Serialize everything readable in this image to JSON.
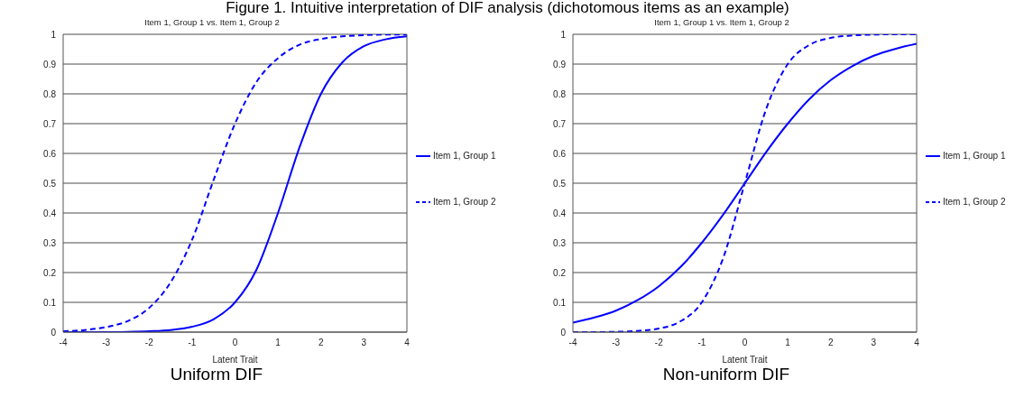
{
  "chart_data": [
    {
      "type": "line",
      "title": "Figure 1. Intuitive interpretation of DIF analysis (dichotomous items as an example)",
      "subtitle": "Item 1, Group 1 vs. Item 1, Group 2",
      "xlabel": "Latent Trait",
      "annotations": [
        "Uniform DIF"
      ],
      "x": [
        -4,
        -3.5,
        -3,
        -2.5,
        -2,
        -1.5,
        -1,
        -0.5,
        0,
        0.5,
        1,
        1.5,
        2,
        2.5,
        3,
        3.5,
        4
      ],
      "xlim": [
        -4,
        4
      ],
      "xticks": [
        -4,
        -3,
        -2,
        -1,
        0,
        1,
        2,
        3,
        4
      ],
      "ylim": [
        0,
        1
      ],
      "yticks": [
        0,
        0.1,
        0.2,
        0.3,
        0.4,
        0.5,
        0.6,
        0.7,
        0.8,
        0.9,
        1
      ],
      "grid": "y",
      "legend": "right",
      "marker": "none",
      "series": [
        {
          "name": "Item 1, Group 1",
          "color": "#0000ff",
          "line_style": "solid",
          "values": [
            0,
            0,
            0,
            0.001,
            0.003,
            0.007,
            0.018,
            0.043,
            0.1,
            0.21,
            0.4,
            0.62,
            0.8,
            0.906,
            0.96,
            0.983,
            0.993
          ]
        },
        {
          "name": "Item 1, Group 2",
          "color": "#0000ff",
          "line_style": "dashed",
          "values": [
            0.003,
            0.007,
            0.017,
            0.037,
            0.081,
            0.167,
            0.31,
            0.51,
            0.7,
            0.84,
            0.92,
            0.965,
            0.984,
            0.993,
            0.997,
            0.999,
            0.999
          ]
        }
      ]
    },
    {
      "type": "line",
      "subtitle": "Item 1, Group 1 vs. Item 1, Group 2",
      "xlabel": "Latent Trait",
      "annotations": [
        "Non-uniform DIF"
      ],
      "x": [
        -4,
        -3.5,
        -3,
        -2.5,
        -2,
        -1.5,
        -1,
        -0.5,
        0,
        0.5,
        1,
        1.5,
        2,
        2.5,
        3,
        3.5,
        4
      ],
      "xlim": [
        -4,
        4
      ],
      "xticks": [
        -4,
        -3,
        -2,
        -1,
        0,
        1,
        2,
        3,
        4
      ],
      "ylim": [
        0,
        1
      ],
      "yticks": [
        0,
        0.1,
        0.2,
        0.3,
        0.4,
        0.5,
        0.6,
        0.7,
        0.8,
        0.9,
        1
      ],
      "grid": "y",
      "legend": "right",
      "marker": "none",
      "series": [
        {
          "name": "Item 1, Group 1",
          "color": "#0000ff",
          "line_style": "solid",
          "values": [
            0.032,
            0.049,
            0.072,
            0.107,
            0.154,
            0.218,
            0.3,
            0.395,
            0.5,
            0.605,
            0.7,
            0.782,
            0.846,
            0.893,
            0.928,
            0.951,
            0.968
          ]
        },
        {
          "name": "Item 1, Group 2",
          "color": "#0000ff",
          "line_style": "dashed",
          "values": [
            0,
            0,
            0.001,
            0.004,
            0.012,
            0.036,
            0.1,
            0.25,
            0.5,
            0.75,
            0.9,
            0.964,
            0.988,
            0.996,
            0.999,
            1,
            1
          ]
        }
      ]
    }
  ]
}
